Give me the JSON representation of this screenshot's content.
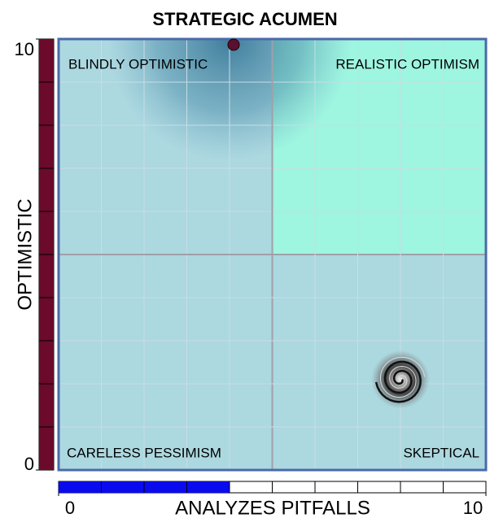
{
  "chart_data": {
    "type": "scatter",
    "title": "STRATEGIC ACUMEN",
    "xlabel": "ANALYZES PITFALLS",
    "ylabel": "OPTIMISTIC",
    "xlim": [
      0,
      10
    ],
    "ylim": [
      0,
      10
    ],
    "xticks": [
      0,
      10
    ],
    "yticks": [
      0,
      10
    ],
    "quadrant_labels": [
      "BLINDLY OPTIMISTIC",
      "REALISTIC OPTIMISM",
      "CARELESS PESSIMISM",
      "SKEPTICAL"
    ],
    "quadrant_colors": [
      "#acd8e0",
      "#9ef5e0",
      "#acd8e0",
      "#acd8e0"
    ],
    "series": [
      {
        "x": [
          4
        ],
        "values": [
          10
        ],
        "color": "#5a1030"
      },
      {
        "x": [
          8
        ],
        "values": [
          2.1
        ],
        "color": "#3a3a3a"
      }
    ],
    "x_gauge_color": "#0a0aee",
    "y_gauge_color": "#6b0a2a"
  }
}
